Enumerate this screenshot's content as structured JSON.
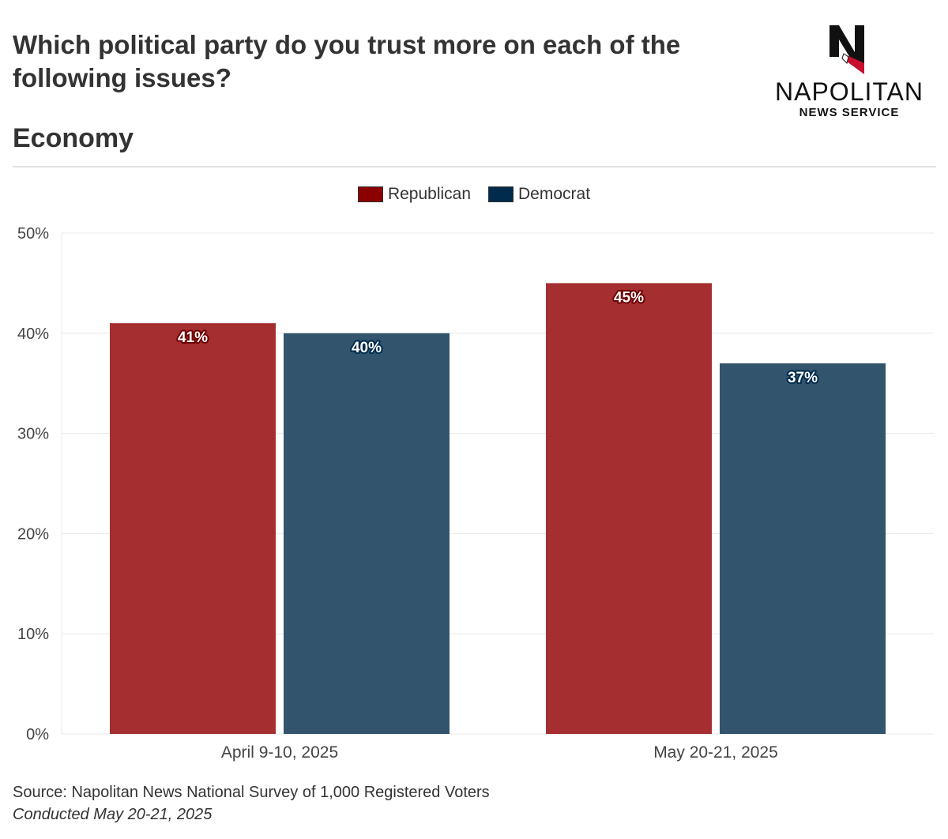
{
  "header": {
    "title": "Which political party do you trust more on each of the following issues?",
    "subtitle": "Economy"
  },
  "logo": {
    "name": "NAPOLITAN",
    "sub": "NEWS SERVICE",
    "letter": "N"
  },
  "footer": {
    "source": "Source: Napolitan News National Survey of 1,000 Registered Voters",
    "conducted": "Conducted May 20-21, 2025"
  },
  "colors": {
    "republican": "#a52e31",
    "democrat": "#32546d",
    "republican_legend": "#8b0000",
    "democrat_legend": "#002b4d",
    "grid": "#e8e8e8",
    "text": "#333333"
  },
  "chart_data": {
    "type": "bar",
    "categories": [
      "April 9-10, 2025",
      "May 20-21, 2025"
    ],
    "series": [
      {
        "name": "Republican",
        "values": [
          41,
          45
        ]
      },
      {
        "name": "Democrat",
        "values": [
          40,
          37
        ]
      }
    ],
    "data_labels": [
      [
        "41%",
        "45%"
      ],
      [
        "40%",
        "37%"
      ]
    ],
    "yticks": [
      0,
      10,
      20,
      30,
      40,
      50
    ],
    "ytick_labels": [
      "0%",
      "10%",
      "20%",
      "30%",
      "40%",
      "50%"
    ],
    "ylim": [
      0,
      50
    ],
    "grid": true,
    "legend_position": "top-center"
  }
}
